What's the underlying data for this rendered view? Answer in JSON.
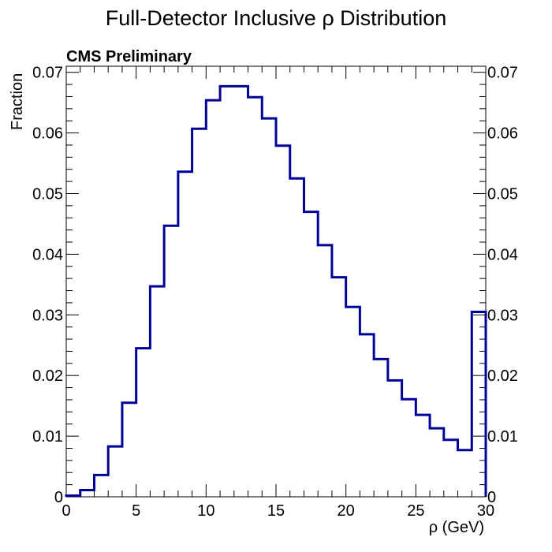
{
  "chart_data": {
    "type": "histogram",
    "title": "Full-Detector Inclusive ρ Distribution",
    "annotation": "CMS Preliminary",
    "xlabel": "ρ (GeV)",
    "ylabel": "Fraction",
    "xlim": [
      0,
      30
    ],
    "ylim": [
      0,
      0.071
    ],
    "x_ticks": [
      0,
      5,
      10,
      15,
      20,
      25,
      30
    ],
    "x_tick_labels": [
      "0",
      "5",
      "10",
      "15",
      "20",
      "25",
      "30"
    ],
    "y_ticks": [
      0,
      0.01,
      0.02,
      0.03,
      0.04,
      0.05,
      0.06,
      0.07
    ],
    "y_tick_labels": [
      "0",
      "0.01",
      "0.02",
      "0.03",
      "0.04",
      "0.05",
      "0.06",
      "0.07"
    ],
    "right_axis_labels": true,
    "line_color": "#000099",
    "bin_edges": [
      0,
      1,
      2,
      3,
      4,
      5,
      6,
      7,
      8,
      9,
      10,
      11,
      12,
      13,
      14,
      15,
      16,
      17,
      18,
      19,
      20,
      21,
      22,
      23,
      24,
      25,
      26,
      27,
      28,
      29,
      30
    ],
    "values": [
      0.0002,
      0.0011,
      0.0036,
      0.0083,
      0.0155,
      0.0245,
      0.0347,
      0.0447,
      0.0536,
      0.0607,
      0.0654,
      0.0677,
      0.0677,
      0.0659,
      0.0624,
      0.0579,
      0.0525,
      0.047,
      0.0415,
      0.0362,
      0.0313,
      0.0268,
      0.0227,
      0.0192,
      0.0161,
      0.0135,
      0.0113,
      0.0094,
      0.0077,
      0.0305
    ]
  }
}
